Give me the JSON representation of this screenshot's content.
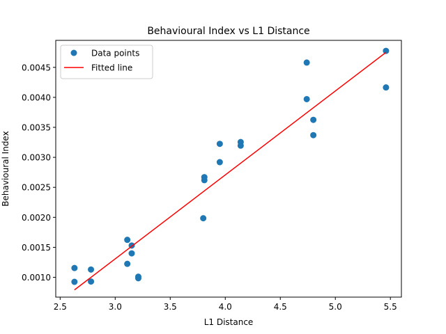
{
  "chart_data": {
    "type": "scatter",
    "title": "Behavioural Index vs L1 Distance",
    "xlabel": "L1 Distance",
    "ylabel": "Behavioural Index",
    "xlim": [
      2.46,
      5.6
    ],
    "ylim": [
      0.00067,
      0.00495
    ],
    "x_ticks": [
      2.5,
      3.0,
      3.5,
      4.0,
      4.5,
      5.0,
      5.5
    ],
    "x_tick_labels": [
      "2.5",
      "3.0",
      "3.5",
      "4.0",
      "4.5",
      "5.0",
      "5.5"
    ],
    "y_ticks": [
      0.001,
      0.0015,
      0.002,
      0.0025,
      0.003,
      0.0035,
      0.004,
      0.0045
    ],
    "y_tick_labels": [
      "0.0010",
      "0.0015",
      "0.0020",
      "0.0025",
      "0.0030",
      "0.0035",
      "0.0040",
      "0.0045"
    ],
    "legend_position": "top-left",
    "grid": false,
    "series": [
      {
        "name": "Data points",
        "kind": "scatter",
        "color": "#1f77b4",
        "points": [
          [
            2.63,
            0.001155
          ],
          [
            2.63,
            0.000925
          ],
          [
            2.78,
            0.00113
          ],
          [
            2.78,
            0.00093
          ],
          [
            3.11,
            0.001625
          ],
          [
            3.11,
            0.001225
          ],
          [
            3.15,
            0.00153
          ],
          [
            3.15,
            0.0014
          ],
          [
            3.21,
            0.00101
          ],
          [
            3.21,
            0.000985
          ],
          [
            3.8,
            0.001985
          ],
          [
            3.81,
            0.00267
          ],
          [
            3.81,
            0.00262
          ],
          [
            3.95,
            0.003225
          ],
          [
            3.95,
            0.00292
          ],
          [
            4.14,
            0.003255
          ],
          [
            4.14,
            0.003195
          ],
          [
            4.74,
            0.00458
          ],
          [
            4.74,
            0.00397
          ],
          [
            4.8,
            0.003625
          ],
          [
            4.8,
            0.00337
          ],
          [
            5.46,
            0.004775
          ],
          [
            5.46,
            0.004165
          ]
        ]
      },
      {
        "name": "Fitted line",
        "kind": "line",
        "color": "#ff0000",
        "points": [
          [
            2.63,
            0.00079
          ],
          [
            5.46,
            0.00475
          ]
        ]
      }
    ]
  }
}
